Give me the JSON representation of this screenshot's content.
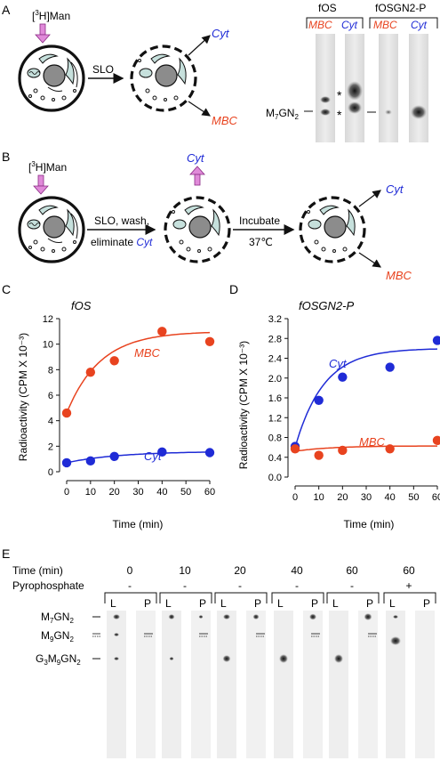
{
  "colors": {
    "red": "#e8431f",
    "blue": "#1f2bd6",
    "pink": "#d66fd0",
    "cell_fill": "#c6e0dc"
  },
  "panel_a": {
    "letter": "A",
    "label_pre": "[",
    "label_sup": "3",
    "label_post": "H]Man",
    "slo": "SLO",
    "cyt": "Cyt",
    "mbc": "MBC",
    "gel_group_fos": "fOS",
    "gel_group_fosgn2p": "fOSGN2-P",
    "lane_mbc": "MBC",
    "lane_cyt": "Cyt",
    "marker_main": "M",
    "marker_sub1": "7",
    "marker_mid": "GN",
    "marker_sub2": "2",
    "star": "*"
  },
  "panel_b": {
    "letter": "B",
    "label_pre": "[",
    "label_sup": "3",
    "label_post": "H]Man",
    "step1_line1": "SLO, wash,",
    "step1_line2": "eliminate ",
    "step1_cyt": "Cyt",
    "cyt_top": "Cyt",
    "incubate": "Incubate",
    "temp": "37℃",
    "cyt": "Cyt",
    "mbc": "MBC"
  },
  "panel_c": {
    "letter": "C",
    "title": "fOS",
    "ylabel": "Radioactivity (CPM X 10⁻³)",
    "xlabel": "Time (min)",
    "series_mbc": "MBC",
    "series_cyt": "Cyt"
  },
  "panel_d": {
    "letter": "D",
    "title": "fOSGN2-P",
    "ylabel": "Radioactivity (CPM X 10⁻³)",
    "xlabel": "Time (min)",
    "series_cyt": "Cyt",
    "series_mbc": "MBC"
  },
  "panel_e": {
    "letter": "E",
    "row_time": "Time (min)",
    "row_pyro": "Pyrophosphate",
    "times": [
      "0",
      "10",
      "20",
      "40",
      "60",
      "60"
    ],
    "pyro": [
      "-",
      "-",
      "-",
      "-",
      "-",
      "+"
    ],
    "lane_l": "L",
    "lane_p": "P",
    "markers": [
      {
        "main": "M",
        "sub1": "7",
        "mid": "GN",
        "sub2": "2"
      },
      {
        "main": "M",
        "sub1": "9",
        "mid": "GN",
        "sub2": "2"
      },
      {
        "main": "G",
        "sub1": "3",
        "mid": "M",
        "sub2": "9",
        "mid2": "GN",
        "sub3": "2"
      }
    ]
  },
  "chart_data": [
    {
      "type": "scatter",
      "title": "fOS",
      "xlabel": "Time (min)",
      "ylabel": "Radioactivity (CPM X 10⁻³)",
      "xlim": [
        0,
        60
      ],
      "ylim": [
        0,
        12
      ],
      "xticks": [
        0,
        10,
        20,
        30,
        40,
        50,
        60
      ],
      "yticks": [
        0,
        2,
        4,
        6,
        8,
        10,
        12
      ],
      "series": [
        {
          "name": "MBC",
          "color": "#e8431f",
          "x": [
            0,
            10,
            20,
            40,
            60
          ],
          "y": [
            4.6,
            7.8,
            8.7,
            11.0,
            10.2
          ]
        },
        {
          "name": "Cyt",
          "color": "#1f2bd6",
          "x": [
            0,
            10,
            20,
            40,
            60
          ],
          "y": [
            0.7,
            0.85,
            1.2,
            1.55,
            1.5
          ]
        }
      ]
    },
    {
      "type": "scatter",
      "title": "fOSGN2-P",
      "xlabel": "Time (min)",
      "ylabel": "Radioactivity (CPM X 10⁻³)",
      "xlim": [
        0,
        60
      ],
      "ylim": [
        0,
        3.2
      ],
      "xticks": [
        0,
        10,
        20,
        30,
        40,
        50,
        60
      ],
      "yticks": [
        "0.0",
        "0.4",
        "0.8",
        "1.2",
        "1.6",
        "2.0",
        "2.4",
        "2.8",
        "3.2"
      ],
      "series": [
        {
          "name": "Cyt",
          "color": "#1f2bd6",
          "x": [
            0,
            10,
            20,
            40,
            60
          ],
          "y": [
            0.62,
            1.55,
            2.02,
            2.22,
            2.76
          ]
        },
        {
          "name": "MBC",
          "color": "#e8431f",
          "x": [
            0,
            10,
            20,
            40,
            60
          ],
          "y": [
            0.57,
            0.44,
            0.54,
            0.57,
            0.74
          ]
        }
      ]
    }
  ]
}
